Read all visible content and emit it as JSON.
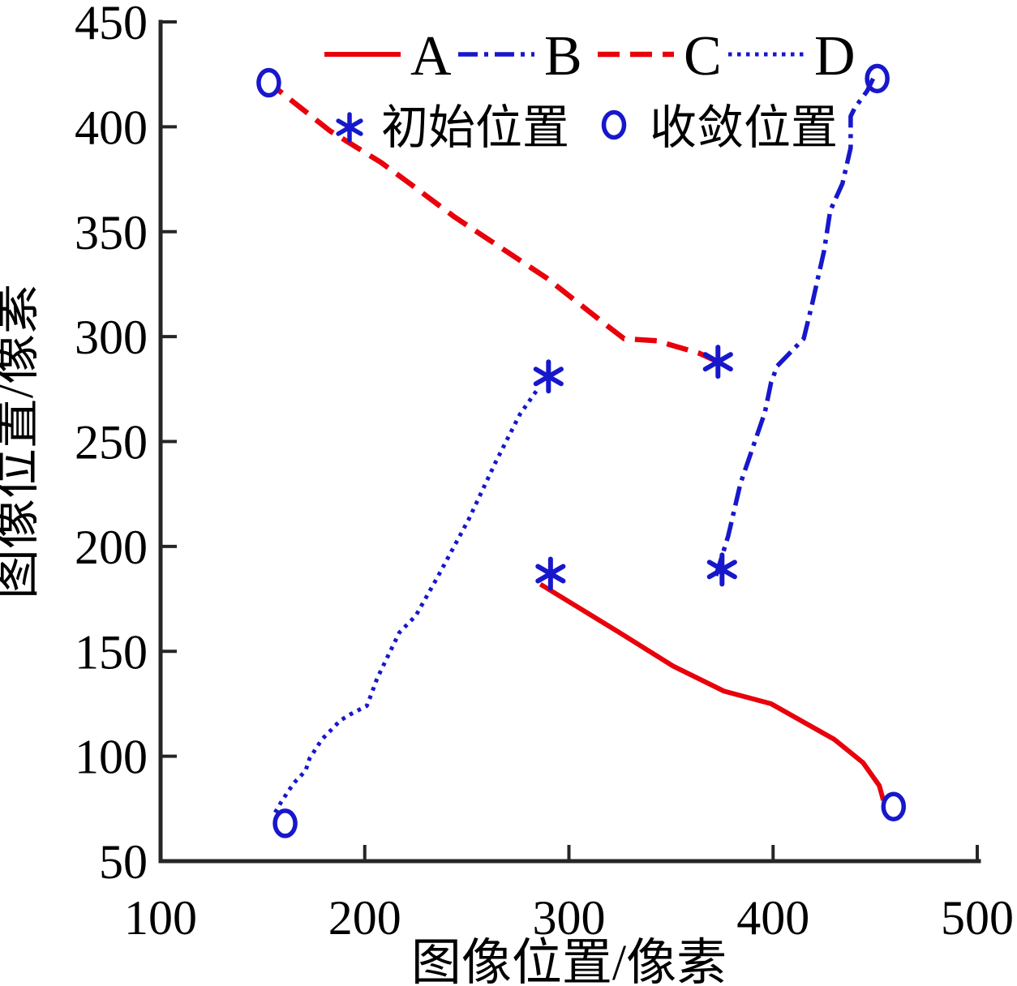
{
  "figure": {
    "background": "#ffffff"
  },
  "chart_data": {
    "type": "line",
    "title": "",
    "xlabel": "图像位置/像素",
    "ylabel": "图像位置/像素",
    "xlim": [
      100,
      500
    ],
    "ylim": [
      50,
      450
    ],
    "x_ticks": [
      100,
      200,
      300,
      400,
      500
    ],
    "y_ticks": [
      50,
      100,
      150,
      200,
      250,
      300,
      350,
      400,
      450
    ],
    "grid": false,
    "axis_color": "#262626",
    "colors": {
      "red": "#e8000b",
      "blue": "#1717cc",
      "marker": "#1717cc"
    },
    "legend": {
      "position": "top-center",
      "entries": [
        {
          "label": "A",
          "style": "solid",
          "color": "#e8000b"
        },
        {
          "label": "B",
          "style": "dashdot",
          "color": "#1717cc"
        },
        {
          "label": "C",
          "style": "dashed",
          "color": "#e8000b"
        },
        {
          "label": "D",
          "style": "dotted",
          "color": "#1717cc"
        }
      ],
      "marker_entries": [
        {
          "marker": "*",
          "label": "初始位置",
          "color": "#1717cc"
        },
        {
          "marker": "o",
          "label": "收敛位置",
          "color": "#1717cc"
        }
      ]
    },
    "series": [
      {
        "name": "A",
        "color": "#e8000b",
        "style": "solid",
        "initial": [
          291,
          187
        ],
        "converged": [
          459,
          76
        ],
        "points": [
          [
            286,
            182
          ],
          [
            323,
            160
          ],
          [
            351,
            143
          ],
          [
            376,
            131
          ],
          [
            399,
            125
          ],
          [
            430,
            108
          ],
          [
            444,
            97
          ],
          [
            452,
            86
          ],
          [
            454,
            79
          ]
        ]
      },
      {
        "name": "B",
        "color": "#1717cc",
        "style": "dashdot",
        "initial": [
          375,
          189
        ],
        "converged": [
          451,
          423
        ],
        "points": [
          [
            372,
            186
          ],
          [
            378,
            205
          ],
          [
            384,
            230
          ],
          [
            390,
            247
          ],
          [
            396,
            264
          ],
          [
            399,
            278
          ],
          [
            402,
            286
          ],
          [
            407,
            291
          ],
          [
            415,
            299
          ],
          [
            419,
            315
          ],
          [
            422,
            328
          ],
          [
            425,
            341
          ],
          [
            428,
            360
          ],
          [
            434,
            373
          ],
          [
            438,
            390
          ],
          [
            438,
            405
          ],
          [
            440,
            409
          ],
          [
            446,
            417
          ],
          [
            449,
            423
          ]
        ]
      },
      {
        "name": "C",
        "color": "#e8000b",
        "style": "dashed",
        "initial": [
          373,
          288
        ],
        "converged": [
          153,
          421
        ],
        "points": [
          [
            373,
            288
          ],
          [
            364,
            292
          ],
          [
            343,
            298
          ],
          [
            327,
            299
          ],
          [
            319,
            305
          ],
          [
            289,
            328
          ],
          [
            244,
            357
          ],
          [
            222,
            373
          ],
          [
            208,
            383
          ],
          [
            183,
            398
          ],
          [
            157,
            418
          ]
        ]
      },
      {
        "name": "D",
        "color": "#1717cc",
        "style": "dotted",
        "initial": [
          290,
          281
        ],
        "converged": [
          161,
          68
        ],
        "points": [
          [
            284,
            274
          ],
          [
            276,
            263
          ],
          [
            264,
            240
          ],
          [
            251,
            213
          ],
          [
            236,
            186
          ],
          [
            225,
            167
          ],
          [
            217,
            159
          ],
          [
            211,
            147
          ],
          [
            206,
            137
          ],
          [
            203,
            129
          ],
          [
            201,
            124
          ],
          [
            193,
            120
          ],
          [
            188,
            117
          ],
          [
            184,
            113
          ],
          [
            179,
            108
          ],
          [
            173,
            99
          ],
          [
            171,
            93
          ],
          [
            166,
            88
          ],
          [
            163,
            84
          ],
          [
            159,
            78
          ],
          [
            156,
            73
          ]
        ]
      }
    ]
  }
}
